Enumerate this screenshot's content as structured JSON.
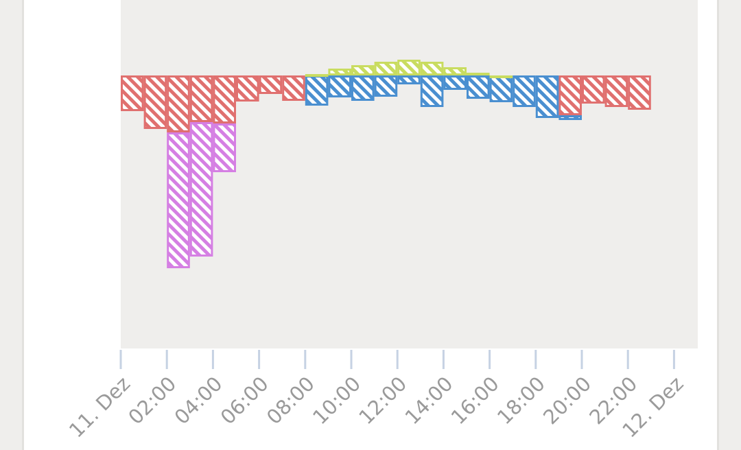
{
  "chart_data": {
    "type": "bar",
    "stacked": true,
    "baseline": 0,
    "x_tick_labels": [
      "11. Dez",
      "02:00",
      "04:00",
      "06:00",
      "08:00",
      "10:00",
      "12:00",
      "14:00",
      "16:00",
      "18:00",
      "20:00",
      "22:00",
      "12. Dez"
    ],
    "x_tick_hours": [
      0,
      2,
      4,
      6,
      8,
      10,
      12,
      14,
      16,
      18,
      20,
      22,
      24
    ],
    "xlim": [
      0,
      25
    ],
    "ylim": [
      -330,
      110
    ],
    "grid": false,
    "legend": "none",
    "plot_background": "#efeeec",
    "series": [
      {
        "color": "#e0706f",
        "hours": [
          0,
          1,
          2,
          3,
          4,
          5,
          6,
          7,
          19,
          20,
          21,
          22
        ],
        "values": [
          -52,
          -78,
          -83,
          -68,
          -70,
          -38,
          -27,
          -37,
          -58,
          -41,
          -46,
          -50
        ]
      },
      {
        "color": "#d57fe3",
        "hours": [
          2,
          3,
          4
        ],
        "values": [
          -198,
          -196,
          -71
        ]
      },
      {
        "color": "#4a8fd0",
        "hours": [
          8,
          9,
          10,
          11,
          12,
          13,
          14,
          15,
          16,
          17,
          18,
          19
        ],
        "values": [
          -44,
          -32,
          -37,
          -31,
          -13,
          -46,
          -21,
          -34,
          -39,
          -46,
          -62,
          -7
        ]
      },
      {
        "color": "#c9dc60",
        "hours": [
          8,
          9,
          10,
          11,
          12,
          13,
          14,
          15,
          16
        ],
        "values": [
          2,
          10,
          15,
          20,
          23,
          20,
          12,
          4,
          0
        ]
      }
    ]
  }
}
